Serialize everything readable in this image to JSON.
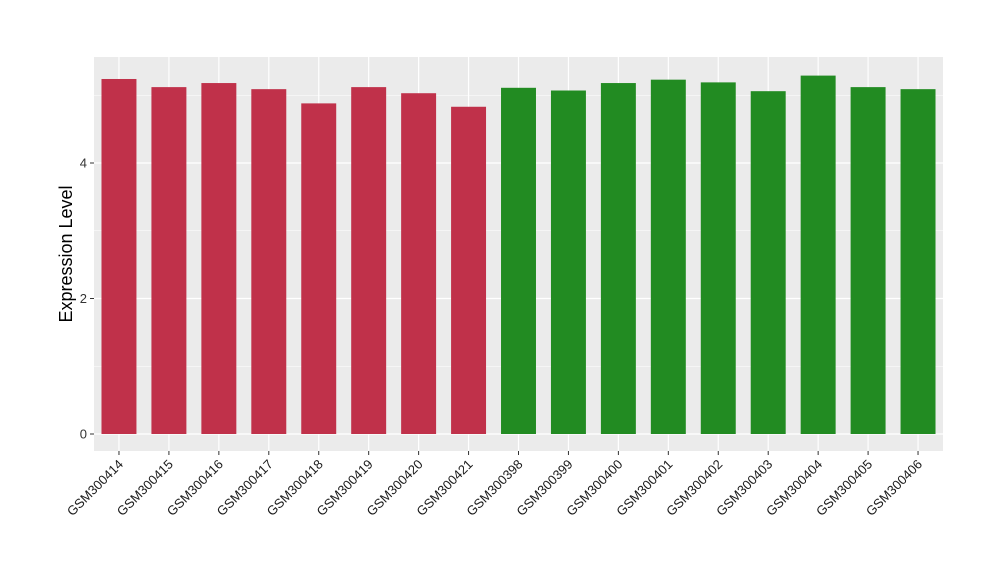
{
  "chart_data": {
    "type": "bar",
    "title": "",
    "xlabel": "",
    "ylabel": "Expression Level",
    "ylim": [
      0,
      5.5
    ],
    "yticks": [
      0,
      2,
      4
    ],
    "ytick_labels": [
      "0",
      "2",
      "4"
    ],
    "grid": true,
    "legend": "none",
    "categories": [
      "GSM300414",
      "GSM300415",
      "GSM300416",
      "GSM300417",
      "GSM300418",
      "GSM300419",
      "GSM300420",
      "GSM300421",
      "GSM300398",
      "GSM300399",
      "GSM300400",
      "GSM300401",
      "GSM300402",
      "GSM300403",
      "GSM300404",
      "GSM300405",
      "GSM300406"
    ],
    "values": [
      5.24,
      5.12,
      5.18,
      5.09,
      4.88,
      5.12,
      5.03,
      4.83,
      5.11,
      5.07,
      5.18,
      5.23,
      5.19,
      5.06,
      5.29,
      5.12,
      5.09
    ],
    "bar_colors": [
      "#c0314a",
      "#c0314a",
      "#c0314a",
      "#c0314a",
      "#c0314a",
      "#c0314a",
      "#c0314a",
      "#c0314a",
      "#228b22",
      "#228b22",
      "#228b22",
      "#228b22",
      "#228b22",
      "#228b22",
      "#228b22",
      "#228b22",
      "#228b22"
    ],
    "panel_background": "#ebebeb",
    "grid_color": "#ffffff"
  }
}
